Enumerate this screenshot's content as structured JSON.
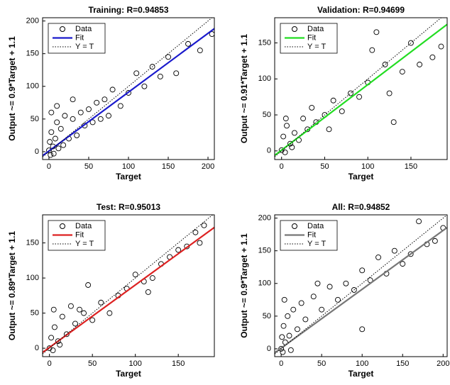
{
  "chart_data": [
    {
      "type": "scatter",
      "title": "Training: R=0.94853",
      "xlabel": "Target",
      "ylabel": "Output ~= 0.9*Target + 1.1",
      "xlim": [
        -8,
        208
      ],
      "ylim": [
        -12,
        205
      ],
      "xticks": [
        0,
        50,
        100,
        150,
        200
      ],
      "yticks": [
        0,
        50,
        100,
        150,
        200
      ],
      "grid": false,
      "legend": "northwest",
      "series": [
        {
          "name": "Data",
          "color": "#000000",
          "marker": "circle",
          "x": [
            0,
            1,
            2,
            3,
            5,
            8,
            10,
            12,
            15,
            18,
            20,
            25,
            30,
            35,
            40,
            45,
            50,
            55,
            60,
            65,
            70,
            75,
            80,
            90,
            100,
            110,
            120,
            130,
            140,
            150,
            160,
            175,
            190,
            205,
            3,
            6,
            10,
            30
          ],
          "values": [
            2,
            15,
            -5,
            30,
            8,
            20,
            45,
            5,
            35,
            10,
            55,
            20,
            50,
            25,
            60,
            40,
            65,
            45,
            75,
            50,
            80,
            55,
            95,
            70,
            90,
            120,
            100,
            130,
            115,
            145,
            120,
            165,
            155,
            180,
            60,
            -3,
            70,
            80
          ]
        },
        {
          "name": "Fit",
          "color": "#1a1acc",
          "style": "solid",
          "x": [
            -8,
            208
          ],
          "values": [
            -6.1,
            188.3
          ]
        },
        {
          "name": "Y = T",
          "color": "#000000",
          "style": "dotted",
          "x": [
            -8,
            208
          ],
          "values": [
            -8,
            208
          ]
        }
      ]
    },
    {
      "type": "scatter",
      "title": "Validation: R=0.94699",
      "xlabel": "Target",
      "ylabel": "Output ~= 0.91*Target + 1.1",
      "xlim": [
        -8,
        192
      ],
      "ylim": [
        -12,
        185
      ],
      "xticks": [
        0,
        50,
        100,
        150
      ],
      "yticks": [
        0,
        50,
        100,
        150
      ],
      "grid": false,
      "legend": "northwest",
      "series": [
        {
          "name": "Data",
          "color": "#000000",
          "marker": "circle",
          "x": [
            0,
            2,
            4,
            6,
            10,
            15,
            20,
            25,
            30,
            40,
            50,
            60,
            70,
            80,
            90,
            100,
            110,
            120,
            130,
            140,
            150,
            160,
            175,
            185,
            5,
            12,
            35,
            55,
            105,
            125
          ],
          "values": [
            1,
            20,
            -2,
            35,
            10,
            25,
            15,
            45,
            30,
            40,
            50,
            70,
            55,
            80,
            75,
            95,
            165,
            120,
            40,
            110,
            150,
            120,
            130,
            145,
            45,
            5,
            60,
            30,
            140,
            80
          ]
        },
        {
          "name": "Fit",
          "color": "#22dd22",
          "style": "solid",
          "x": [
            -8,
            192
          ],
          "values": [
            -6.2,
            175.8
          ]
        },
        {
          "name": "Y = T",
          "color": "#000000",
          "style": "dotted",
          "x": [
            -8,
            192
          ],
          "values": [
            -8,
            192
          ]
        }
      ]
    },
    {
      "type": "scatter",
      "title": "Test: R=0.95013",
      "xlabel": "Target",
      "ylabel": "Output ~= 0.89*Target + 1.1",
      "xlim": [
        -8,
        192
      ],
      "ylim": [
        -12,
        190
      ],
      "xticks": [
        0,
        50,
        100,
        150
      ],
      "yticks": [
        0,
        50,
        100,
        150
      ],
      "grid": false,
      "legend": "northwest",
      "series": [
        {
          "name": "Data",
          "color": "#000000",
          "marker": "circle",
          "x": [
            0,
            2,
            4,
            6,
            10,
            15,
            20,
            25,
            30,
            40,
            50,
            60,
            70,
            80,
            90,
            100,
            110,
            120,
            130,
            140,
            150,
            160,
            170,
            180,
            5,
            12,
            35,
            45,
            115,
            175
          ],
          "values": [
            0,
            15,
            -3,
            30,
            10,
            45,
            20,
            60,
            35,
            50,
            40,
            65,
            50,
            75,
            85,
            105,
            95,
            100,
            120,
            130,
            140,
            145,
            165,
            175,
            55,
            5,
            55,
            90,
            80,
            150
          ]
        },
        {
          "name": "Fit",
          "color": "#dd2222",
          "style": "solid",
          "x": [
            -8,
            192
          ],
          "values": [
            -6.0,
            172.0
          ]
        },
        {
          "name": "Y = T",
          "color": "#000000",
          "style": "dotted",
          "x": [
            -8,
            192
          ],
          "values": [
            -8,
            192
          ]
        }
      ]
    },
    {
      "type": "scatter",
      "title": "All: R=0.94852",
      "xlabel": "Target",
      "ylabel": "Output ~= 0.9*Target + 1.1",
      "xlim": [
        -8,
        205
      ],
      "ylim": [
        -12,
        205
      ],
      "xticks": [
        0,
        50,
        100,
        150,
        200
      ],
      "yticks": [
        0,
        50,
        100,
        150,
        200
      ],
      "grid": false,
      "legend": "northwest",
      "series": [
        {
          "name": "Data",
          "color": "#000000",
          "marker": "circle",
          "x": [
            0,
            1,
            2,
            3,
            5,
            8,
            10,
            15,
            20,
            25,
            30,
            40,
            50,
            60,
            70,
            80,
            90,
            100,
            110,
            120,
            130,
            140,
            150,
            160,
            170,
            180,
            190,
            200,
            4,
            12,
            45,
            100
          ],
          "values": [
            0,
            18,
            -5,
            35,
            10,
            50,
            20,
            60,
            30,
            70,
            45,
            80,
            60,
            95,
            75,
            100,
            90,
            120,
            105,
            140,
            115,
            150,
            130,
            145,
            195,
            160,
            165,
            185,
            75,
            -2,
            100,
            30
          ]
        },
        {
          "name": "Fit",
          "color": "#777777",
          "style": "solid",
          "x": [
            -8,
            205
          ],
          "values": [
            -6.1,
            185.6
          ]
        },
        {
          "name": "Y = T",
          "color": "#000000",
          "style": "dotted",
          "x": [
            -8,
            205
          ],
          "values": [
            -8,
            205
          ]
        }
      ]
    }
  ]
}
